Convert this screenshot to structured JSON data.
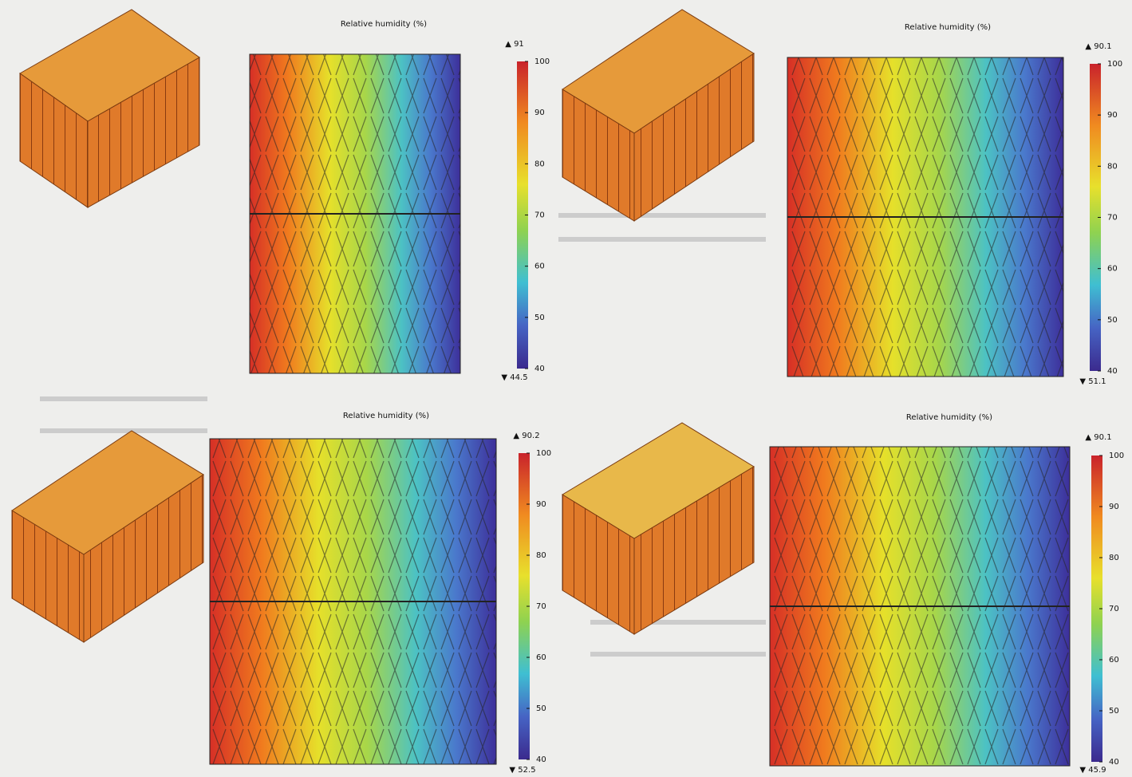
{
  "panels": [
    {
      "title": "Relative humidity (%)",
      "max_label": "▲ 91",
      "min_label": "▼ 44.5",
      "colorbar_ticks": [
        100,
        90,
        80,
        70,
        60,
        50,
        40
      ]
    },
    {
      "title": "Relative humidity (%)",
      "max_label": "▲ 90.1",
      "min_label": "▼ 51.1",
      "colorbar_ticks": [
        100,
        90,
        80,
        70,
        60,
        50,
        40
      ]
    },
    {
      "title": "Relative humidity (%)",
      "max_label": "▲ 90.2",
      "min_label": "▼ 52.5",
      "colorbar_ticks": [
        100,
        90,
        80,
        70,
        60,
        50,
        40
      ]
    },
    {
      "title": "Relative humidity (%)",
      "max_label": "▲ 90.1",
      "min_label": "▼ 45.9",
      "colorbar_ticks": [
        100,
        90,
        80,
        70,
        60,
        50,
        40
      ]
    }
  ]
}
